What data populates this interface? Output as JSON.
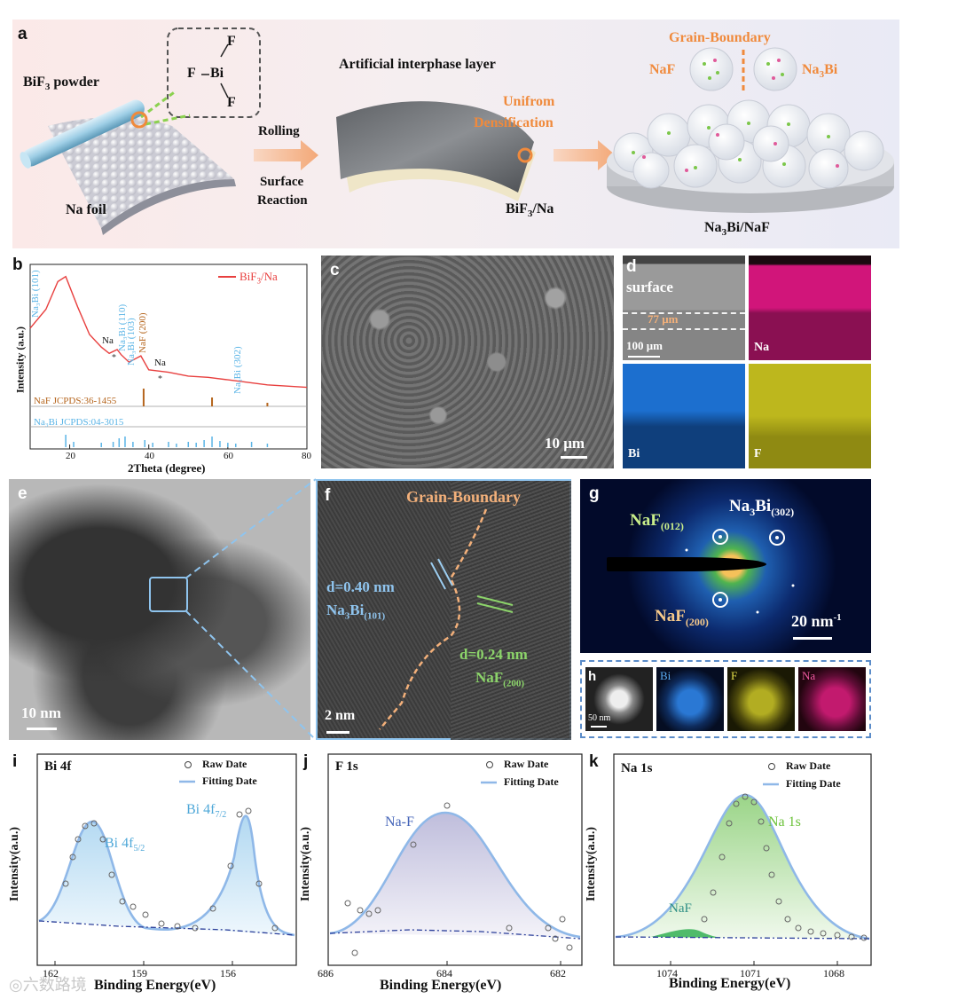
{
  "panel_a": {
    "label": "a",
    "bif3_powder": "BiF",
    "bif3_sub": "3",
    "bif3_rest": " powder",
    "molecule_F_top": "F",
    "molecule_F_left": "F",
    "molecule_Bi": "Bi",
    "molecule_F_bottom": "F",
    "na_foil": "Na foil",
    "rolling": "Rolling",
    "surface_reaction_1": "Surface",
    "surface_reaction_2": "Reaction",
    "artificial_layer": "Artificial interphase layer",
    "unifrom_1": "Unifrom",
    "unifrom_2": "Densification",
    "bif3_na": "BiF",
    "bif3_na_sub": "3",
    "bif3_na_rest": "/Na",
    "grain_boundary": "Grain-Boundary",
    "naf": "NaF",
    "na3bi_a": "Na",
    "na3bi_a_sub": "3",
    "na3bi_a_rest": "Bi",
    "product": "Na",
    "product_sub": "3",
    "product_rest": "Bi/NaF"
  },
  "panel_b": {
    "label": "b",
    "legend": "BiF",
    "legend_sub": "3",
    "legend_rest": "/Na",
    "ylabel": "Intensity (a.u.)",
    "xlabel": "2Theta (degree)",
    "peak_101": "Na₃Bi (101)",
    "peak_na1": "Na",
    "peak_110": "Na₃Bi (110)",
    "peak_103": "Na₃Bi (103)",
    "peak_200": "NaF (200)",
    "peak_na2": "Na",
    "peak_302": "Na₃Bi (302)",
    "ref_naf": "NaF JCPDS:36-1455",
    "ref_na3bi": "Na₃Bi JCPDS:04-3015",
    "ticks": [
      "20",
      "40",
      "60",
      "80"
    ]
  },
  "chart_data": {
    "type": "line",
    "xlabel": "2Theta (degree)",
    "ylabel": "Intensity (a.u.)",
    "xlim": [
      10,
      80
    ],
    "series": [
      {
        "name": "BiF3/Na",
        "x": [
          10,
          14,
          17,
          19,
          22,
          25,
          28,
          30,
          32,
          33,
          35,
          38,
          40,
          45,
          50,
          55,
          60,
          70,
          80
        ],
        "y": [
          0.55,
          0.7,
          0.92,
          0.96,
          0.72,
          0.5,
          0.4,
          0.35,
          0.38,
          0.34,
          0.28,
          0.33,
          0.22,
          0.2,
          0.17,
          0.16,
          0.14,
          0.1,
          0.08
        ]
      }
    ]
  },
  "panel_c": {
    "label": "c",
    "scale": "10 μm"
  },
  "panel_d": {
    "label": "d",
    "surface": "surface",
    "thickness": "77 μm",
    "scale": "100 μm",
    "na": "Na",
    "bi": "Bi",
    "f": "F"
  },
  "panel_e": {
    "label": "e",
    "scale": "10 nm"
  },
  "panel_f": {
    "label": "f",
    "grain": "Grain-Boundary",
    "d1": "d=0.40 nm",
    "d1_phase": "Na",
    "d1_sub": "3",
    "d1_rest": "Bi",
    "d1_idx": "(101)",
    "d2": "d=0.24 nm",
    "d2_phase": "NaF",
    "d2_idx": "(200)",
    "scale": "2 nm"
  },
  "panel_g": {
    "label": "g",
    "naf012": "NaF",
    "naf012_idx": "(012)",
    "na3bi": "Na",
    "na3bi_sub": "3",
    "na3bi_rest": "Bi",
    "na3bi_idx": "(302)",
    "naf200": "NaF",
    "naf200_idx": "(200)",
    "scale": "20 nm",
    "scale_sup": "-1"
  },
  "panel_h": {
    "label": "h",
    "scale": "50 nm",
    "bi": "Bi",
    "f": "F",
    "na": "Na"
  },
  "panel_i": {
    "label": "i",
    "title": "Bi 4f",
    "raw": "Raw Date",
    "fit": "Fitting Date",
    "peak1": "Bi 4f",
    "peak1_sub": "5/2",
    "peak2": "Bi 4f",
    "peak2_sub": "7/2",
    "ylabel": "Intensity(a.u.)",
    "xlabel": "Binding Energy(eV)",
    "ticks": [
      "162",
      "159",
      "156"
    ]
  },
  "panel_j": {
    "label": "j",
    "title": "F 1s",
    "raw": "Raw Date",
    "fit": "Fitting Date",
    "peak": "Na-F",
    "ylabel": "Intensity(a.u.)",
    "xlabel": "Binding Energy(eV)",
    "ticks": [
      "686",
      "684",
      "682"
    ]
  },
  "panel_k": {
    "label": "k",
    "title": "Na 1s",
    "raw": "Raw Date",
    "fit": "Fitting Date",
    "peak1": "Na 1s",
    "peak2": "NaF",
    "ylabel": "Intensity(a.u.)",
    "xlabel": "Binding Energy(eV)",
    "ticks": [
      "1074",
      "1071",
      "1068"
    ]
  },
  "watermark": "六数路境",
  "colors": {
    "xrd_line": "#e8403f",
    "naf_ref": "#b5651d",
    "na3bi_ref": "#5ab4e6",
    "fit": "#8fb8e8",
    "orange": "#f08a3c"
  }
}
